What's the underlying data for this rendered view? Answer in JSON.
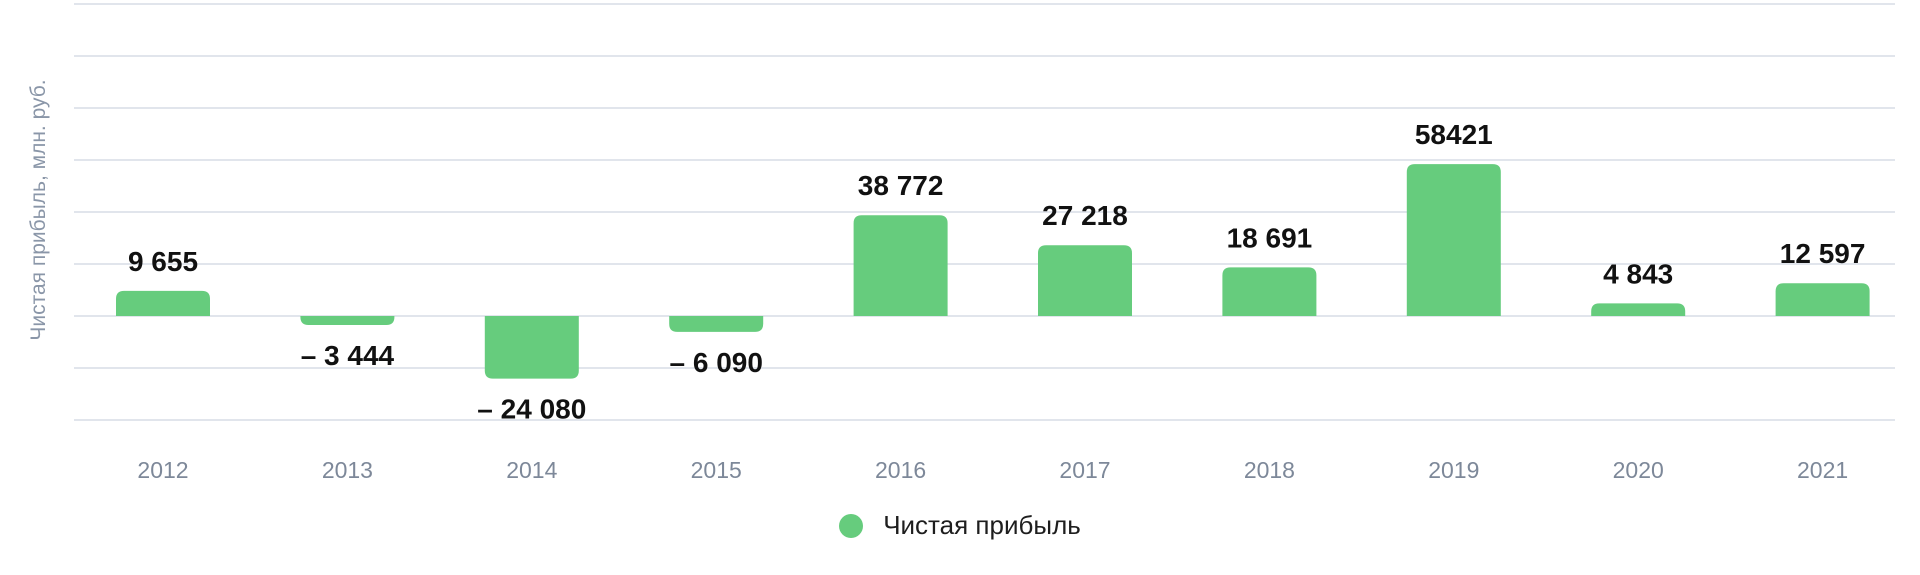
{
  "chart_data": {
    "type": "bar",
    "categories": [
      "2012",
      "2013",
      "2014",
      "2015",
      "2016",
      "2017",
      "2018",
      "2019",
      "2020",
      "2021"
    ],
    "series": [
      {
        "name": "Чистая прибыль",
        "values": [
          9655,
          -3444,
          -24080,
          -6090,
          38772,
          27218,
          18691,
          58421,
          4843,
          12597
        ],
        "labels": [
          "9 655",
          "– 3 444",
          "– 24 080",
          "– 6 090",
          "38 772",
          "27 218",
          "18 691",
          "58421",
          "4 843",
          "12 597"
        ]
      }
    ],
    "ylabel": "Чистая прибыль, млн. руб.",
    "ylim": [
      -40000,
      120000
    ],
    "grid": true,
    "legend_position": "bottom-center",
    "colors": {
      "bar": "#66cc7d",
      "grid": "#e1e5ec",
      "tick_label": "#7d8899",
      "value_label": "#111111",
      "axis_label": "#8a96a8"
    }
  }
}
